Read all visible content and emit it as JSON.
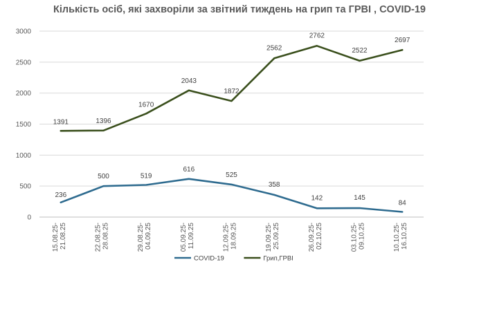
{
  "chart_data": {
    "type": "line",
    "title": "Кількість осіб, які захворіли за звітний тиждень на  грип та ГРВІ , COVID-19",
    "categories": [
      [
        "15.08.25-",
        "21.08.25"
      ],
      [
        "22.08.25-",
        "28.08.25"
      ],
      [
        "29.08.25-",
        "04.09.25"
      ],
      [
        "05.09.25-",
        "11.09.25"
      ],
      [
        "12.09.25-",
        "18.09.25"
      ],
      [
        "19.09.25-",
        "25.09.25"
      ],
      [
        "26.09.25-",
        "02.10.25"
      ],
      [
        "03.10.25-",
        "09.10.25"
      ],
      [
        "10.10.25-",
        "16.10.25"
      ]
    ],
    "series": [
      {
        "name": "COVID-19",
        "color": "#2e6b8f",
        "values": [
          236,
          500,
          519,
          616,
          525,
          358,
          142,
          145,
          84
        ]
      },
      {
        "name": "Грип,ГРВІ",
        "color": "#3a4f1c",
        "values": [
          1391,
          1396,
          1670,
          2043,
          1872,
          2562,
          2762,
          2522,
          2697
        ]
      }
    ],
    "ylim": [
      0,
      3000
    ],
    "yticks": [
      0,
      500,
      1000,
      1500,
      2000,
      2500,
      3000
    ],
    "grid": true,
    "legend_position": "bottom"
  }
}
